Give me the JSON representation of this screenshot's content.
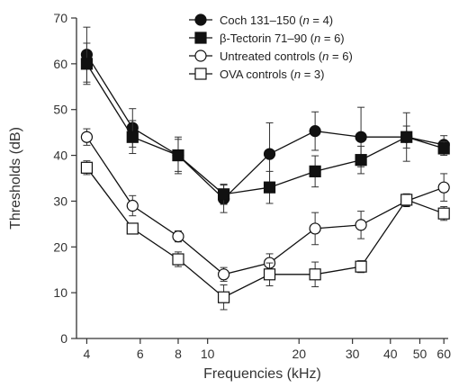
{
  "chart_data": {
    "type": "line",
    "xlabel": "Frequencies (kHz)",
    "ylabel": "Thresholds (dB)",
    "x_scale": "log",
    "xlim": [
      3.7,
      62
    ],
    "ylim": [
      0,
      70
    ],
    "x_ticks": [
      4,
      6,
      8,
      10,
      20,
      30,
      40,
      50,
      60
    ],
    "y_ticks": [
      0,
      10,
      20,
      30,
      40,
      50,
      60,
      70
    ],
    "legend_position": "top-right",
    "grid": false,
    "series": [
      {
        "name": "Coch 131–150 (n = 4)",
        "legend": {
          "pre": "Coch 131–150 (",
          "italic": "n",
          "post": " = 4)"
        },
        "marker": "circle-filled",
        "x": [
          4,
          5.66,
          8,
          11.3,
          16,
          22.6,
          32,
          45.2,
          60
        ],
        "y": [
          62,
          46,
          40,
          30.5,
          40.3,
          45.3,
          44,
          44,
          42.3
        ],
        "err": [
          6,
          4.2,
          4,
          3,
          6.8,
          4.2,
          6.5,
          5.3,
          2
        ]
      },
      {
        "name": "β-Tectorin 71–90 (n = 6)",
        "legend": {
          "pre": "β-Tectorin 71–90 (",
          "italic": "n",
          "post": " = 6)"
        },
        "marker": "square-filled",
        "x": [
          4,
          5.66,
          8,
          11.3,
          16,
          22.6,
          32,
          45.2,
          60
        ],
        "y": [
          60,
          44,
          40,
          31.5,
          33,
          36.5,
          39,
          44,
          41.5
        ],
        "err": [
          4.5,
          3.6,
          3.5,
          2.2,
          3.5,
          3.4,
          3,
          2.4,
          1.5
        ]
      },
      {
        "name": "Untreated controls (n = 6)",
        "legend": {
          "pre": "Untreated controls (",
          "italic": "n",
          "post": " = 6)"
        },
        "marker": "circle-open",
        "x": [
          4,
          5.66,
          8,
          11.3,
          16,
          22.6,
          32,
          45.2,
          60
        ],
        "y": [
          44,
          29,
          22.3,
          14,
          16.5,
          24,
          24.8,
          30,
          33
        ],
        "err": [
          1.8,
          2.2,
          1.2,
          1.5,
          2,
          3.5,
          3,
          1.2,
          3
        ]
      },
      {
        "name": "OVA controls (n = 3)",
        "legend": {
          "pre": "OVA controls (",
          "italic": "n",
          "post": " = 3)"
        },
        "marker": "square-open",
        "x": [
          4,
          5.66,
          8,
          11.3,
          16,
          22.6,
          32,
          45.2,
          60
        ],
        "y": [
          37.3,
          24,
          17.3,
          9,
          14,
          14,
          15.7,
          30.3,
          27.3
        ],
        "err": [
          1.5,
          0.8,
          1.6,
          2.7,
          2.5,
          2.7,
          1.3,
          1.3,
          1.5
        ]
      }
    ]
  }
}
